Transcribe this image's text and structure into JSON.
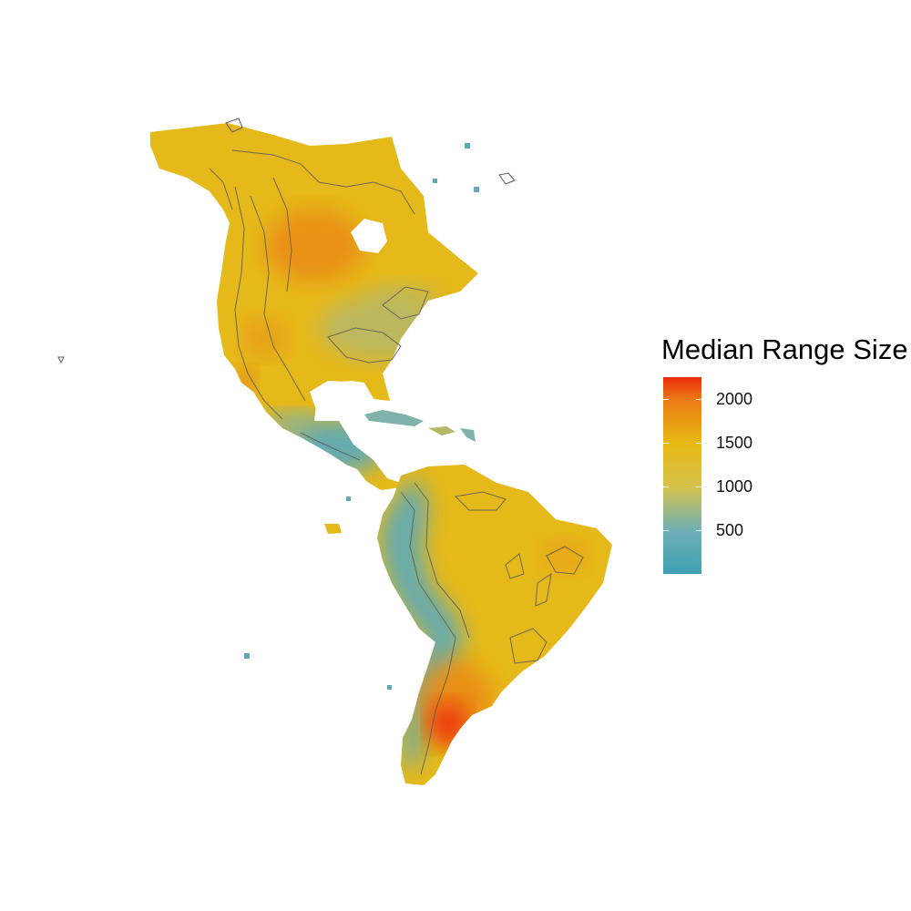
{
  "legend": {
    "title": "Median Range Size",
    "min": 0,
    "max": 2250,
    "ticks": [
      {
        "value": 2000,
        "label": "2000"
      },
      {
        "value": 1500,
        "label": "1500"
      },
      {
        "value": 1000,
        "label": "1000"
      },
      {
        "value": 500,
        "label": "500"
      }
    ],
    "color_stops": [
      {
        "value": 0,
        "color": "#3f9fb3"
      },
      {
        "value": 500,
        "color": "#6fb0b6"
      },
      {
        "value": 1000,
        "color": "#d6c24a"
      },
      {
        "value": 1500,
        "color": "#e8b814"
      },
      {
        "value": 2000,
        "color": "#eb7a14"
      },
      {
        "value": 2250,
        "color": "#ee2a0a"
      }
    ]
  },
  "map": {
    "region": "Americas",
    "colors": {
      "water": "#ffffff",
      "land_base": "#e6b91a",
      "high_range": "#ea8a16",
      "very_high_range": "#ee3a10",
      "low_range": "#5faab8",
      "mid_range": "#b7b768",
      "contour_line": "#5a5a5a"
    }
  }
}
